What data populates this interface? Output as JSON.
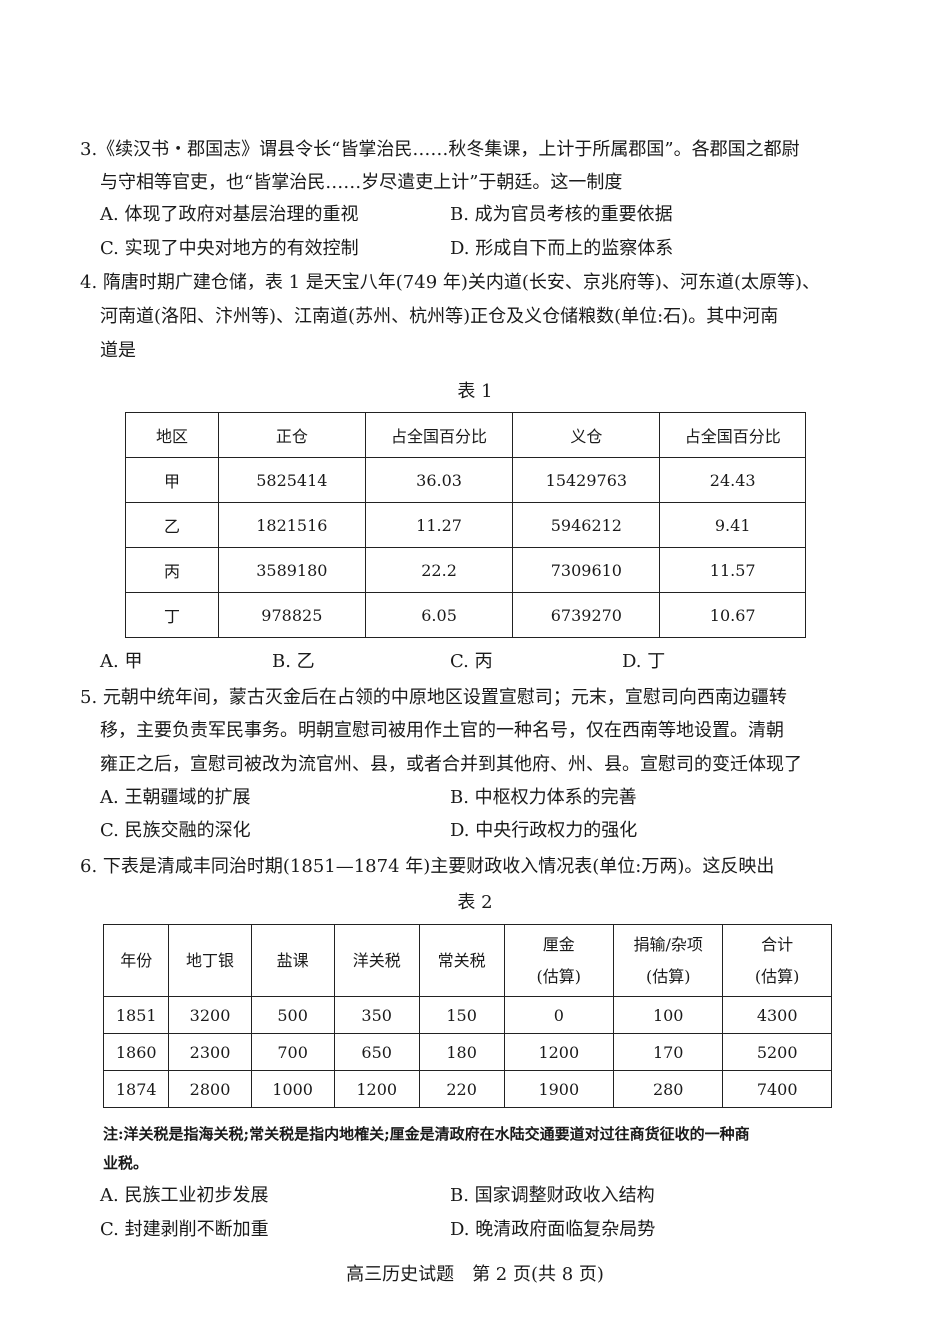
{
  "q3": {
    "lines": [
      "3.《续汉书・郡国志》谓县令长“皆掌治民……秋冬集课，上计于所属郡国”。各郡国之都尉",
      "与守相等官吏，也“皆掌治民……岁尽遣吏上计”于朝廷。这一制度"
    ],
    "options": [
      "A. 体现了政府对基层治理的重视",
      "B. 成为官员考核的重要依据",
      "C. 实现了中央对地方的有效控制",
      "D. 形成自下而上的监察体系"
    ]
  },
  "q4": {
    "lines": [
      "4. 隋唐时期广建仓储，表 1 是天宝八年(749 年)关内道(长安、京兆府等)、河东道(太原等)、",
      "河南道(洛阳、汴州等)、江南道(苏州、杭州等)正仓及义仓储粮数(单位:石)。其中河南",
      "道是"
    ],
    "table_caption": "表 1",
    "table": {
      "headers": [
        "地区",
        "正仓",
        "占全国百分比",
        "义仓",
        "占全国百分比"
      ],
      "rows": [
        [
          "甲",
          "5825414",
          "36.03",
          "15429763",
          "24.43"
        ],
        [
          "乙",
          "1821516",
          "11.27",
          "5946212",
          "9.41"
        ],
        [
          "丙",
          "3589180",
          "22.2",
          "7309610",
          "11.57"
        ],
        [
          "丁",
          "978825",
          "6.05",
          "6739270",
          "10.67"
        ]
      ]
    },
    "options": [
      "A. 甲",
      "B. 乙",
      "C. 丙",
      "D. 丁"
    ]
  },
  "q5": {
    "lines": [
      "5. 元朝中统年间，蒙古灭金后在占领的中原地区设置宣慰司；元末，宣慰司向西南边疆转",
      "移，主要负责军民事务。明朝宣慰司被用作土官的一种名号，仅在西南等地设置。清朝",
      "雍正之后，宣慰司被改为流官州、县，或者合并到其他府、州、县。宣慰司的变迁体现了"
    ],
    "options": [
      "A. 王朝疆域的扩展",
      "B. 中枢权力体系的完善",
      "C. 民族交融的深化",
      "D. 中央行政权力的强化"
    ]
  },
  "q6": {
    "lines": [
      "6. 下表是清咸丰同治时期(1851—1874 年)主要财政收入情况表(单位:万两)。这反映出"
    ],
    "table_caption": "表 2",
    "table": {
      "headers": [
        "年份",
        "地丁银",
        "盐课",
        "洋关税",
        "常关税",
        "厘金\n(估算)",
        "捐输/杂项\n(估算)",
        "合计\n(估算)"
      ],
      "rows": [
        [
          "1851",
          "3200",
          "500",
          "350",
          "150",
          "0",
          "100",
          "4300"
        ],
        [
          "1860",
          "2300",
          "700",
          "650",
          "180",
          "1200",
          "170",
          "5200"
        ],
        [
          "1874",
          "2800",
          "1000",
          "1200",
          "220",
          "1900",
          "280",
          "7400"
        ]
      ]
    },
    "note_lines": [
      "注:洋关税是指海关税;常关税是指内地榷关;厘金是清政府在水陆交通要道对过往商货征收的一种商",
      "业税。"
    ],
    "options": [
      "A. 民族工业初步发展",
      "B. 国家调整财政收入结构",
      "C. 封建剥削不断加重",
      "D. 晚清政府面临复杂局势"
    ]
  },
  "footer": "高三历史试题　第 2 页(共 8 页)"
}
